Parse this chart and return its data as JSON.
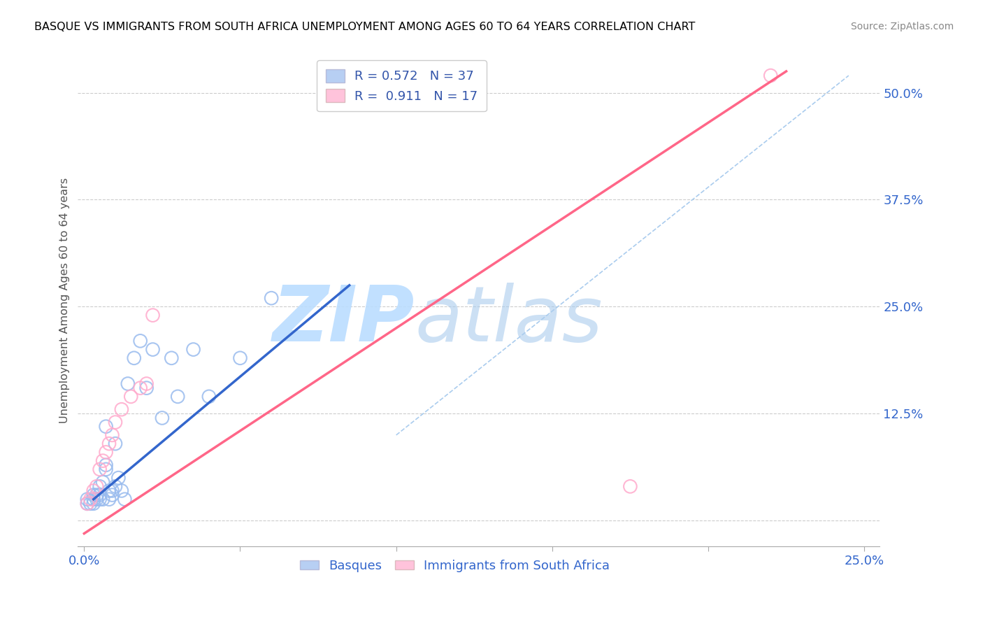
{
  "title": "BASQUE VS IMMIGRANTS FROM SOUTH AFRICA UNEMPLOYMENT AMONG AGES 60 TO 64 YEARS CORRELATION CHART",
  "source": "Source: ZipAtlas.com",
  "ylabel": "Unemployment Among Ages 60 to 64 years",
  "xlim": [
    -0.002,
    0.255
  ],
  "ylim": [
    -0.03,
    0.545
  ],
  "x_ticks": [
    0.0,
    0.05,
    0.1,
    0.15,
    0.2,
    0.25
  ],
  "x_tick_labels": [
    "0.0%",
    "",
    "",
    "",
    "",
    "25.0%"
  ],
  "y_ticks_right": [
    0.0,
    0.125,
    0.25,
    0.375,
    0.5
  ],
  "y_tick_labels_right": [
    "",
    "12.5%",
    "25.0%",
    "37.5%",
    "50.0%"
  ],
  "legend1_r": "0.572",
  "legend1_n": "37",
  "legend2_r": "0.911",
  "legend2_n": "17",
  "legend_label1": "Basques",
  "legend_label2": "Immigrants from South Africa",
  "color_blue": "#99BBEE",
  "color_pink": "#FFAACC",
  "color_line_blue": "#3366CC",
  "color_line_pink": "#FF6688",
  "watermark": "ZIPatlas",
  "watermark_color": "#BBDDFF",
  "basque_x": [
    0.001,
    0.001,
    0.002,
    0.003,
    0.003,
    0.003,
    0.004,
    0.004,
    0.005,
    0.005,
    0.005,
    0.006,
    0.006,
    0.007,
    0.007,
    0.007,
    0.008,
    0.008,
    0.009,
    0.009,
    0.01,
    0.01,
    0.011,
    0.012,
    0.013,
    0.014,
    0.016,
    0.018,
    0.02,
    0.022,
    0.025,
    0.028,
    0.03,
    0.035,
    0.04,
    0.05,
    0.06
  ],
  "basque_y": [
    0.02,
    0.025,
    0.02,
    0.02,
    0.025,
    0.03,
    0.025,
    0.03,
    0.025,
    0.03,
    0.04,
    0.025,
    0.045,
    0.06,
    0.065,
    0.11,
    0.025,
    0.035,
    0.03,
    0.035,
    0.04,
    0.09,
    0.05,
    0.035,
    0.025,
    0.16,
    0.19,
    0.21,
    0.155,
    0.2,
    0.12,
    0.19,
    0.145,
    0.2,
    0.145,
    0.19,
    0.26
  ],
  "sa_x": [
    0.001,
    0.002,
    0.003,
    0.004,
    0.005,
    0.006,
    0.007,
    0.008,
    0.009,
    0.01,
    0.012,
    0.015,
    0.018,
    0.02,
    0.022,
    0.175,
    0.22
  ],
  "sa_y": [
    0.02,
    0.025,
    0.035,
    0.04,
    0.06,
    0.07,
    0.08,
    0.09,
    0.1,
    0.115,
    0.13,
    0.145,
    0.155,
    0.16,
    0.24,
    0.04,
    0.52
  ],
  "blue_line_x": [
    0.003,
    0.085
  ],
  "blue_line_y": [
    0.025,
    0.275
  ],
  "pink_line_x": [
    0.0,
    0.225
  ],
  "pink_line_y": [
    -0.015,
    0.525
  ],
  "diag_line_x": [
    0.1,
    0.245
  ],
  "diag_line_y": [
    0.1,
    0.52
  ]
}
